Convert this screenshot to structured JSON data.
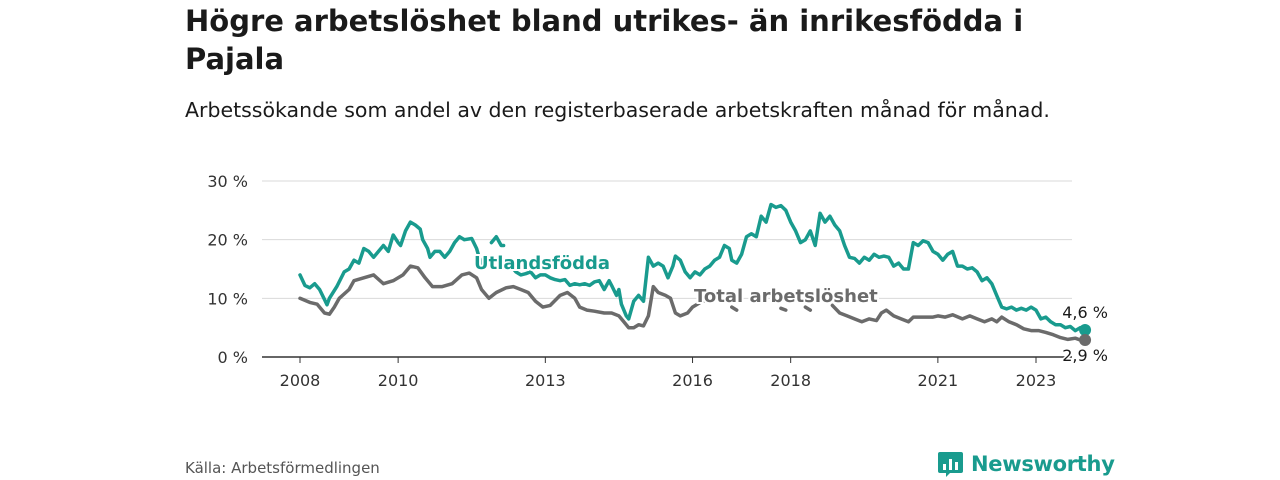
{
  "header": {
    "title": "Högre arbetslöshet bland utrikes- än inrikesfödda i Pajala",
    "subtitle": "Arbetssökande som andel av den registerbaserade arbetskraften månad för månad."
  },
  "footer": {
    "source": "Källa: Arbetsförmedlingen",
    "logo_text": "Newsworthy"
  },
  "colors": {
    "utrikes": "#199b8e",
    "total": "#6b6b6b",
    "grid": "#d9d9d9",
    "axis": "#333333",
    "logo": "#199b8e"
  },
  "icons": {
    "logo": "bar-chart-speech-bubble-icon"
  },
  "chart_data": {
    "type": "line",
    "title": "Högre arbetslöshet bland utrikes- än inrikesfödda i Pajala",
    "subtitle": "Arbetssökande som andel av den registerbaserade arbetskraften månad för månad.",
    "xlabel": "",
    "ylabel": "",
    "ylim": [
      0,
      30
    ],
    "xlim": [
      2008.0,
      2023.0
    ],
    "y_ticks": [
      0,
      10,
      20,
      30
    ],
    "y_tick_labels": [
      "0 %",
      "10 %",
      "20 %",
      "30 %"
    ],
    "x_ticks": [
      2008,
      2010,
      2013,
      2016,
      2018,
      2021,
      2023
    ],
    "x_tick_labels": [
      "2008",
      "2010",
      "2013",
      "2016",
      "2018",
      "2021",
      "2023"
    ],
    "grid": true,
    "series": [
      {
        "name": "Utlandsfödda",
        "label_year": 2011.8,
        "label_value": 16,
        "end_label": "4,6 %",
        "end_value": 4.6,
        "points": [
          [
            2008.0,
            14.0
          ],
          [
            2008.1,
            12.2
          ],
          [
            2008.2,
            11.8
          ],
          [
            2008.3,
            12.5
          ],
          [
            2008.4,
            11.5
          ],
          [
            2008.5,
            9.8
          ],
          [
            2008.55,
            8.9
          ],
          [
            2008.6,
            10.0
          ],
          [
            2008.75,
            12.0
          ],
          [
            2008.9,
            14.5
          ],
          [
            2009.0,
            15.0
          ],
          [
            2009.1,
            16.5
          ],
          [
            2009.2,
            16.0
          ],
          [
            2009.3,
            18.5
          ],
          [
            2009.4,
            18.0
          ],
          [
            2009.5,
            17.0
          ],
          [
            2009.6,
            18.0
          ],
          [
            2009.7,
            19.0
          ],
          [
            2009.8,
            18.0
          ],
          [
            2009.9,
            20.8
          ],
          [
            2010.0,
            19.5
          ],
          [
            2010.05,
            19.0
          ],
          [
            2010.15,
            21.5
          ],
          [
            2010.25,
            23.0
          ],
          [
            2010.35,
            22.5
          ],
          [
            2010.45,
            21.8
          ],
          [
            2010.5,
            20.0
          ],
          [
            2010.6,
            18.5
          ],
          [
            2010.65,
            17.0
          ],
          [
            2010.75,
            18.0
          ],
          [
            2010.85,
            18.0
          ],
          [
            2010.95,
            17.0
          ],
          [
            2011.05,
            18.0
          ],
          [
            2011.15,
            19.5
          ],
          [
            2011.25,
            20.5
          ],
          [
            2011.35,
            20.0
          ],
          [
            2011.5,
            20.2
          ],
          [
            2011.6,
            18.5
          ],
          [
            2011.65,
            17.0
          ],
          [
            2011.7,
            15.8
          ],
          [
            2011.75,
            16.2
          ],
          null,
          [
            2011.9,
            19.5
          ],
          [
            2012.0,
            20.5
          ],
          [
            2012.1,
            19.0
          ],
          [
            2012.15,
            19.0
          ],
          null,
          [
            2012.3,
            15.5
          ],
          [
            2012.4,
            14.5
          ],
          [
            2012.5,
            14.0
          ],
          [
            2012.6,
            14.2
          ],
          [
            2012.7,
            14.5
          ],
          [
            2012.8,
            13.5
          ],
          [
            2012.9,
            14.0
          ],
          [
            2013.0,
            14.0
          ],
          [
            2013.1,
            13.5
          ],
          [
            2013.2,
            13.2
          ],
          [
            2013.3,
            13.0
          ],
          [
            2013.4,
            13.2
          ],
          [
            2013.5,
            12.2
          ],
          [
            2013.6,
            12.5
          ],
          [
            2013.7,
            12.3
          ],
          [
            2013.8,
            12.5
          ],
          [
            2013.9,
            12.2
          ],
          [
            2014.0,
            12.8
          ],
          [
            2014.1,
            13.0
          ],
          [
            2014.2,
            11.5
          ],
          [
            2014.3,
            13.0
          ],
          [
            2014.35,
            12.2
          ],
          [
            2014.45,
            10.5
          ],
          [
            2014.5,
            11.5
          ],
          [
            2014.55,
            9.0
          ],
          [
            2014.65,
            7.0
          ],
          [
            2014.7,
            6.5
          ],
          [
            2014.8,
            9.5
          ],
          [
            2014.9,
            10.5
          ],
          [
            2015.0,
            9.5
          ],
          [
            2015.1,
            17.0
          ],
          [
            2015.2,
            15.5
          ],
          [
            2015.3,
            16.0
          ],
          [
            2015.4,
            15.5
          ],
          [
            2015.5,
            13.5
          ],
          [
            2015.6,
            15.5
          ],
          [
            2015.65,
            17.2
          ],
          [
            2015.75,
            16.5
          ],
          [
            2015.85,
            14.5
          ],
          [
            2015.95,
            13.5
          ],
          [
            2016.05,
            14.5
          ],
          [
            2016.15,
            14.0
          ],
          [
            2016.25,
            15.0
          ],
          [
            2016.35,
            15.5
          ],
          [
            2016.45,
            16.5
          ],
          [
            2016.55,
            17.0
          ],
          [
            2016.65,
            19.0
          ],
          [
            2016.75,
            18.5
          ],
          [
            2016.8,
            16.5
          ],
          [
            2016.9,
            16.0
          ],
          [
            2017.0,
            17.5
          ],
          [
            2017.1,
            20.5
          ],
          [
            2017.2,
            21.0
          ],
          [
            2017.3,
            20.5
          ],
          [
            2017.4,
            24.0
          ],
          [
            2017.5,
            23.0
          ],
          [
            2017.6,
            26.0
          ],
          [
            2017.7,
            25.5
          ],
          [
            2017.8,
            25.8
          ],
          [
            2017.9,
            25.0
          ],
          [
            2018.0,
            23.0
          ],
          [
            2018.1,
            21.5
          ],
          [
            2018.2,
            19.5
          ],
          [
            2018.3,
            20.0
          ],
          [
            2018.4,
            21.5
          ],
          [
            2018.5,
            19.0
          ],
          [
            2018.6,
            24.5
          ],
          [
            2018.7,
            23.0
          ],
          [
            2018.8,
            24.0
          ],
          [
            2018.9,
            22.5
          ],
          [
            2019.0,
            21.5
          ],
          [
            2019.1,
            19.0
          ],
          [
            2019.2,
            17.0
          ],
          [
            2019.3,
            16.8
          ],
          [
            2019.4,
            16.0
          ],
          [
            2019.5,
            17.0
          ],
          [
            2019.6,
            16.5
          ],
          [
            2019.7,
            17.5
          ],
          [
            2019.8,
            17.0
          ],
          [
            2019.9,
            17.2
          ],
          [
            2020.0,
            17.0
          ],
          [
            2020.1,
            15.5
          ],
          [
            2020.2,
            16.0
          ],
          [
            2020.3,
            15.0
          ],
          [
            2020.4,
            15.0
          ],
          [
            2020.5,
            19.5
          ],
          [
            2020.6,
            19.0
          ],
          [
            2020.7,
            19.8
          ],
          [
            2020.8,
            19.5
          ],
          [
            2020.9,
            18.0
          ],
          [
            2021.0,
            17.5
          ],
          [
            2021.1,
            16.5
          ],
          [
            2021.2,
            17.5
          ],
          [
            2021.3,
            18.0
          ],
          [
            2021.4,
            15.5
          ],
          [
            2021.5,
            15.5
          ],
          [
            2021.6,
            15.0
          ],
          [
            2021.7,
            15.2
          ],
          [
            2021.8,
            14.5
          ],
          [
            2021.9,
            13.0
          ],
          [
            2022.0,
            13.5
          ],
          [
            2022.1,
            12.5
          ],
          [
            2022.2,
            10.5
          ],
          [
            2022.3,
            8.5
          ],
          [
            2022.4,
            8.2
          ],
          [
            2022.5,
            8.5
          ],
          [
            2022.6,
            8.0
          ],
          [
            2022.7,
            8.3
          ],
          [
            2022.8,
            8.0
          ],
          [
            2022.9,
            8.5
          ],
          [
            2023.0,
            8.0
          ],
          [
            2023.1,
            6.5
          ],
          [
            2023.2,
            6.8
          ],
          [
            2023.3,
            6.0
          ],
          [
            2023.4,
            5.5
          ],
          [
            2023.5,
            5.5
          ],
          [
            2023.6,
            5.0
          ],
          [
            2023.7,
            5.2
          ],
          [
            2023.8,
            4.5
          ],
          [
            2023.9,
            5.0
          ],
          [
            2024.0,
            4.6
          ]
        ]
      },
      {
        "name": "Total arbetslöshet",
        "label_year": 2016.1,
        "label_value": 10,
        "end_label": "2,9 %",
        "end_value": 2.9,
        "points": [
          [
            2008.0,
            10.0
          ],
          [
            2008.2,
            9.3
          ],
          [
            2008.35,
            9.0
          ],
          [
            2008.5,
            7.5
          ],
          [
            2008.6,
            7.3
          ],
          [
            2008.7,
            8.5
          ],
          [
            2008.8,
            10.0
          ],
          [
            2009.0,
            11.5
          ],
          [
            2009.1,
            13.0
          ],
          [
            2009.3,
            13.5
          ],
          [
            2009.5,
            14.0
          ],
          [
            2009.7,
            12.5
          ],
          [
            2009.9,
            13.0
          ],
          [
            2010.1,
            14.0
          ],
          [
            2010.25,
            15.5
          ],
          [
            2010.4,
            15.2
          ],
          [
            2010.55,
            13.5
          ],
          [
            2010.7,
            12.0
          ],
          [
            2010.9,
            12.0
          ],
          [
            2011.1,
            12.5
          ],
          [
            2011.3,
            14.0
          ],
          [
            2011.45,
            14.3
          ],
          [
            2011.6,
            13.5
          ],
          [
            2011.7,
            11.5
          ],
          [
            2011.85,
            10.0
          ],
          [
            2012.0,
            11.0
          ],
          [
            2012.2,
            11.8
          ],
          [
            2012.35,
            12.0
          ],
          [
            2012.5,
            11.5
          ],
          [
            2012.65,
            11.0
          ],
          [
            2012.8,
            9.5
          ],
          [
            2012.95,
            8.5
          ],
          [
            2013.1,
            8.8
          ],
          [
            2013.3,
            10.5
          ],
          [
            2013.45,
            11.0
          ],
          [
            2013.6,
            10.0
          ],
          [
            2013.7,
            8.5
          ],
          [
            2013.85,
            8.0
          ],
          [
            2014.0,
            7.8
          ],
          [
            2014.2,
            7.5
          ],
          [
            2014.35,
            7.5
          ],
          [
            2014.5,
            7.0
          ],
          [
            2014.6,
            6.0
          ],
          [
            2014.7,
            5.0
          ],
          [
            2014.8,
            5.0
          ],
          [
            2014.9,
            5.5
          ],
          [
            2015.0,
            5.3
          ],
          [
            2015.1,
            7.0
          ],
          [
            2015.2,
            12.0
          ],
          [
            2015.3,
            11.0
          ],
          [
            2015.45,
            10.5
          ],
          [
            2015.55,
            10.0
          ],
          [
            2015.65,
            7.5
          ],
          [
            2015.75,
            7.0
          ],
          [
            2015.9,
            7.5
          ],
          [
            2016.0,
            8.5
          ],
          [
            2016.2,
            9.5
          ],
          [
            2016.35,
            9.8
          ],
          null,
          [
            2016.8,
            8.5
          ],
          [
            2016.9,
            8.0
          ],
          null,
          [
            2017.8,
            8.3
          ],
          [
            2017.9,
            8.0
          ],
          null,
          [
            2018.3,
            8.5
          ],
          [
            2018.4,
            8.0
          ],
          null,
          [
            2018.85,
            8.8
          ],
          [
            2019.0,
            7.5
          ],
          [
            2019.15,
            7.0
          ],
          [
            2019.3,
            6.5
          ],
          [
            2019.45,
            6.0
          ],
          [
            2019.6,
            6.5
          ],
          [
            2019.75,
            6.2
          ],
          [
            2019.85,
            7.5
          ],
          [
            2019.95,
            8.0
          ],
          [
            2020.1,
            7.0
          ],
          [
            2020.25,
            6.5
          ],
          [
            2020.4,
            6.0
          ],
          [
            2020.5,
            6.8
          ],
          [
            2020.7,
            6.8
          ],
          [
            2020.9,
            6.8
          ],
          [
            2021.0,
            7.0
          ],
          [
            2021.15,
            6.8
          ],
          [
            2021.3,
            7.2
          ],
          [
            2021.5,
            6.5
          ],
          [
            2021.65,
            7.0
          ],
          [
            2021.8,
            6.5
          ],
          [
            2021.95,
            6.0
          ],
          [
            2022.1,
            6.5
          ],
          [
            2022.2,
            6.0
          ],
          [
            2022.3,
            6.8
          ],
          [
            2022.45,
            6.0
          ],
          [
            2022.6,
            5.5
          ],
          [
            2022.75,
            4.8
          ],
          [
            2022.9,
            4.5
          ],
          [
            2023.05,
            4.5
          ],
          [
            2023.2,
            4.2
          ],
          [
            2023.35,
            3.8
          ],
          [
            2023.5,
            3.3
          ],
          [
            2023.65,
            3.0
          ],
          [
            2023.8,
            3.2
          ],
          [
            2023.9,
            2.9
          ],
          [
            2024.0,
            2.9
          ]
        ]
      }
    ]
  }
}
